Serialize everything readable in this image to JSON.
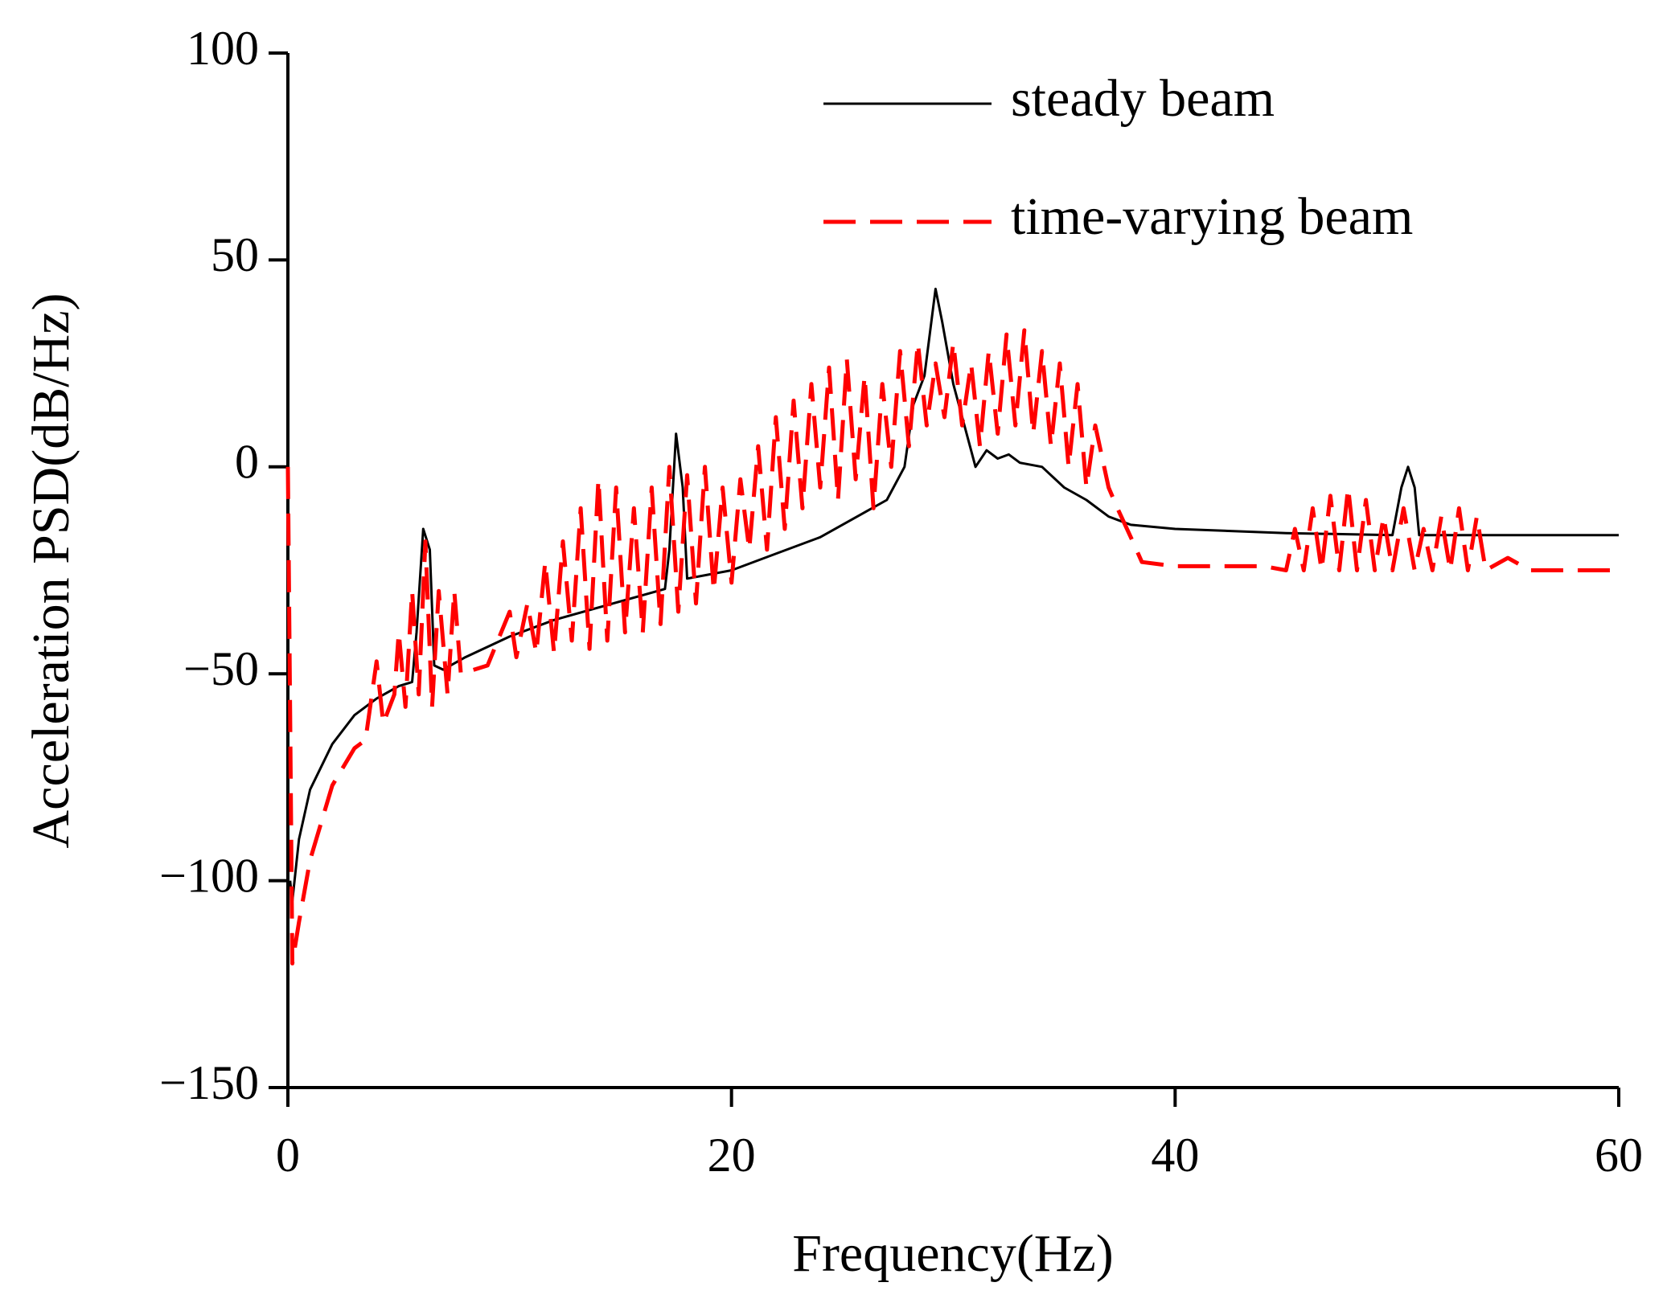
{
  "chart_data": {
    "type": "line",
    "xlabel": "Frequency(Hz)",
    "ylabel": "Acceleration PSD(dB/Hz)",
    "xlim": [
      0,
      60
    ],
    "xticks": [
      0,
      20,
      40,
      60
    ],
    "ylim": [
      -150,
      100
    ],
    "yticks": [
      {
        "value": -150,
        "label": "−150"
      },
      {
        "value": -100,
        "label": "−100"
      },
      {
        "value": -50,
        "label": "−50"
      },
      0,
      50,
      100
    ],
    "legend": "upper right",
    "series": [
      {
        "name": "steady beam",
        "color": "#000000",
        "dash": "solid",
        "x": [
          0.1,
          0.2,
          0.5,
          1,
          2,
          3,
          4,
          5,
          5.6,
          5.8,
          6.1,
          6.4,
          6.6,
          7,
          8,
          10,
          12,
          14,
          16,
          17,
          17.2,
          17.5,
          17.8,
          18,
          20,
          22,
          24,
          26,
          27,
          27.8,
          28.2,
          28.7,
          29.2,
          29.5,
          30,
          30.5,
          31,
          31.5,
          32,
          32.5,
          33,
          34,
          35,
          36,
          37,
          38,
          40,
          45,
          49.8,
          50.2,
          50.5,
          50.8,
          51,
          55,
          60
        ],
        "values": [
          -100,
          -105,
          -90,
          -78,
          -67,
          -60,
          -56,
          -53,
          -52,
          -40,
          -15,
          -20,
          -48,
          -49,
          -46,
          -41,
          -37,
          -34,
          -31,
          -29.5,
          -20,
          8,
          -5,
          -27,
          -25,
          -21,
          -17,
          -11,
          -8,
          0,
          15,
          22,
          43,
          35,
          20,
          10,
          0,
          4,
          2,
          3,
          1,
          0,
          -5,
          -8,
          -12,
          -14,
          -15,
          -16,
          -16.5,
          -5,
          0,
          -5,
          -16.5,
          -16.5,
          -16.5
        ]
      },
      {
        "name": "time-varying beam",
        "color": "#ff0000",
        "dash": "dashed",
        "x": [
          0,
          0.1,
          0.2,
          0.5,
          1,
          2,
          3,
          3.5,
          4,
          4.3,
          4.8,
          5,
          5.3,
          5.6,
          5.9,
          6.2,
          6.5,
          6.8,
          7.2,
          7.5,
          7.8,
          9,
          10,
          10.3,
          10.8,
          11.2,
          11.6,
          12,
          12.4,
          12.8,
          13.2,
          13.6,
          14,
          14.4,
          14.8,
          15.2,
          15.6,
          16,
          16.4,
          16.8,
          17.2,
          17.6,
          18,
          18.4,
          18.8,
          19.2,
          19.6,
          20,
          20.4,
          20.8,
          21.2,
          21.6,
          22,
          22.4,
          22.8,
          23.2,
          23.6,
          24,
          24.4,
          24.8,
          25.2,
          25.6,
          26,
          26.4,
          26.8,
          27.2,
          27.6,
          28,
          28.4,
          28.8,
          29.2,
          29.6,
          30,
          30.4,
          30.8,
          31.2,
          31.6,
          32,
          32.4,
          32.8,
          33.2,
          33.6,
          34,
          34.4,
          34.8,
          35.2,
          35.6,
          36,
          36.4,
          37,
          37.4,
          38,
          38.5,
          40,
          44,
          45,
          45.4,
          45.8,
          46.2,
          46.6,
          47,
          47.4,
          47.8,
          48.2,
          48.6,
          49,
          49.4,
          49.8,
          50.3,
          50.8,
          51.2,
          51.6,
          52,
          52.4,
          52.8,
          53.2,
          53.6,
          54,
          55,
          56,
          60
        ],
        "values": [
          0,
          -60,
          -120,
          -110,
          -95,
          -77,
          -68,
          -66,
          -47,
          -62,
          -55,
          -40,
          -58,
          -30,
          -55,
          -18,
          -58,
          -30,
          -55,
          -30,
          -50,
          -48,
          -35,
          -46,
          -33,
          -45,
          -23,
          -45,
          -18,
          -42,
          -10,
          -44,
          -3,
          -42,
          -5,
          -40,
          -10,
          -40,
          -5,
          -38,
          0,
          -35,
          -2,
          -33,
          0,
          -30,
          -5,
          -28,
          -3,
          -20,
          5,
          -20,
          12,
          -15,
          16,
          -10,
          20,
          -5,
          24,
          -8,
          26,
          -3,
          22,
          -10,
          20,
          0,
          28,
          5,
          30,
          10,
          25,
          12,
          30,
          10,
          25,
          5,
          28,
          8,
          32,
          10,
          33,
          8,
          28,
          5,
          25,
          0,
          20,
          -5,
          10,
          -5,
          -10,
          -17,
          -23,
          -24,
          -24,
          -25,
          -15,
          -25,
          -10,
          -25,
          -7,
          -25,
          -5,
          -25,
          -8,
          -25,
          -12,
          -25,
          -10,
          -25,
          -15,
          -25,
          -12,
          -25,
          -10,
          -25,
          -12,
          -25,
          -22,
          -25,
          -25
        ]
      }
    ]
  }
}
